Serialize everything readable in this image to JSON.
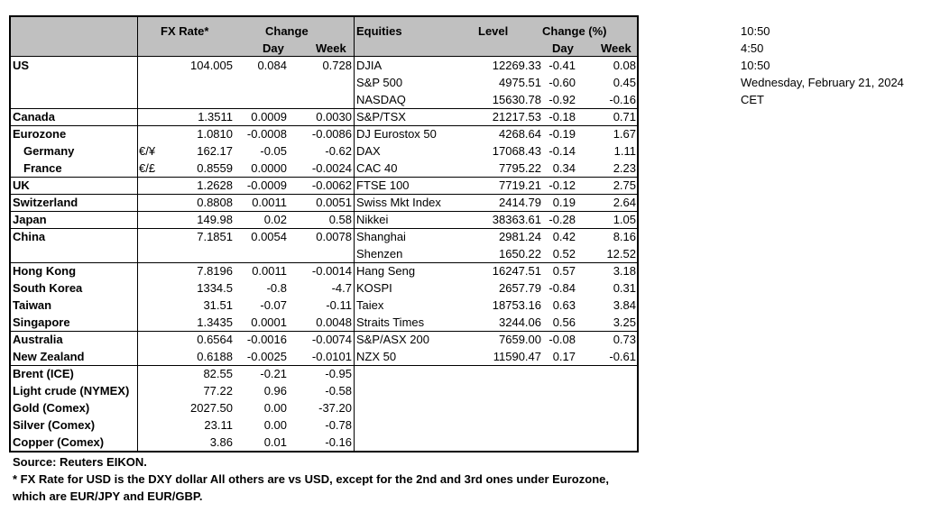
{
  "headers": {
    "fx_rate": "FX Rate*",
    "change": "Change",
    "day": "Day",
    "week": "Week",
    "equities": "Equities",
    "level": "Level",
    "change_pct": "Change (%)",
    "eq_day": "Day",
    "eq_week": "Week"
  },
  "rows": [
    {
      "country": "US",
      "bold": true,
      "indent": false,
      "pair": "",
      "fx": "104.005",
      "chg_day": "0.084",
      "chg_week": "0.728",
      "index": "DJIA",
      "level": "12269.33",
      "eq_day": "-0.41",
      "eq_week": "0.08"
    },
    {
      "country": "",
      "bold": false,
      "indent": false,
      "pair": "",
      "fx": "",
      "chg_day": "",
      "chg_week": "",
      "index": "S&P 500",
      "level": "4975.51",
      "eq_day": "-0.60",
      "eq_week": "0.45"
    },
    {
      "country": "",
      "bold": false,
      "indent": false,
      "pair": "",
      "fx": "",
      "chg_day": "",
      "chg_week": "",
      "index": "NASDAQ",
      "level": "15630.78",
      "eq_day": "-0.92",
      "eq_week": "-0.16"
    },
    {
      "country": "Canada",
      "bold": true,
      "indent": false,
      "pair": "",
      "fx": "1.3511",
      "chg_day": "0.0009",
      "chg_week": "0.0030",
      "index": "S&P/TSX",
      "level": "21217.53",
      "eq_day": "-0.18",
      "eq_week": "0.71"
    },
    {
      "country": "Eurozone",
      "bold": true,
      "indent": false,
      "pair": "",
      "fx": "1.0810",
      "chg_day": "-0.0008",
      "chg_week": "-0.0086",
      "index": "DJ Eurostox 50",
      "level": "4268.64",
      "eq_day": "-0.19",
      "eq_week": "1.67"
    },
    {
      "country": "Germany",
      "bold": true,
      "indent": true,
      "pair": "€/¥",
      "fx": "162.17",
      "chg_day": "-0.05",
      "chg_week": "-0.62",
      "index": "DAX",
      "level": "17068.43",
      "eq_day": "-0.14",
      "eq_week": "1.11"
    },
    {
      "country": "France",
      "bold": true,
      "indent": true,
      "pair": "€/£",
      "fx": "0.8559",
      "chg_day": "0.0000",
      "chg_week": "-0.0024",
      "index": "CAC 40",
      "level": "7795.22",
      "eq_day": "0.34",
      "eq_week": "2.23"
    },
    {
      "country": "UK",
      "bold": true,
      "indent": false,
      "pair": "",
      "fx": "1.2628",
      "chg_day": "-0.0009",
      "chg_week": "-0.0062",
      "index": "FTSE 100",
      "level": "7719.21",
      "eq_day": "-0.12",
      "eq_week": "2.75"
    },
    {
      "country": "Switzerland",
      "bold": true,
      "indent": false,
      "pair": "",
      "fx": "0.8808",
      "chg_day": "0.0011",
      "chg_week": "0.0051",
      "index": "Swiss Mkt Index",
      "level": "2414.79",
      "eq_day": "0.19",
      "eq_week": "2.64"
    },
    {
      "country": "Japan",
      "bold": true,
      "indent": false,
      "pair": "",
      "fx": "149.98",
      "chg_day": "0.02",
      "chg_week": "0.58",
      "index": "Nikkei",
      "level": "38363.61",
      "eq_day": "-0.28",
      "eq_week": "1.05"
    },
    {
      "country": "China",
      "bold": true,
      "indent": false,
      "pair": "",
      "fx": "7.1851",
      "chg_day": "0.0054",
      "chg_week": "0.0078",
      "index": "Shanghai",
      "level": "2981.24",
      "eq_day": "0.42",
      "eq_week": "8.16"
    },
    {
      "country": "",
      "bold": false,
      "indent": false,
      "pair": "",
      "fx": "",
      "chg_day": "",
      "chg_week": "",
      "index": "Shenzen",
      "level": "1650.22",
      "eq_day": "0.52",
      "eq_week": "12.52"
    },
    {
      "country": "Hong Kong",
      "bold": true,
      "indent": false,
      "pair": "",
      "fx": "7.8196",
      "chg_day": "0.0011",
      "chg_week": "-0.0014",
      "index": "Hang Seng",
      "level": "16247.51",
      "eq_day": "0.57",
      "eq_week": "3.18"
    },
    {
      "country": "South Korea",
      "bold": true,
      "indent": false,
      "pair": "",
      "fx": "1334.5",
      "chg_day": "-0.8",
      "chg_week": "-4.7",
      "index": "KOSPI",
      "level": "2657.79",
      "eq_day": "-0.84",
      "eq_week": "0.31"
    },
    {
      "country": "Taiwan",
      "bold": true,
      "indent": false,
      "pair": "",
      "fx": "31.51",
      "chg_day": "-0.07",
      "chg_week": "-0.11",
      "index": "Taiex",
      "level": "18753.16",
      "eq_day": "0.63",
      "eq_week": "3.84"
    },
    {
      "country": "Singapore",
      "bold": true,
      "indent": false,
      "pair": "",
      "fx": "1.3435",
      "chg_day": "0.0001",
      "chg_week": "0.0048",
      "index": "Straits Times",
      "level": "3244.06",
      "eq_day": "0.56",
      "eq_week": "3.25"
    },
    {
      "country": "Australia",
      "bold": true,
      "indent": false,
      "pair": "",
      "fx": "0.6564",
      "chg_day": "-0.0016",
      "chg_week": "-0.0074",
      "index": "S&P/ASX  200",
      "level": "7659.00",
      "eq_day": "-0.08",
      "eq_week": "0.73"
    },
    {
      "country": "New Zealand",
      "bold": true,
      "indent": false,
      "pair": "",
      "fx": "0.6188",
      "chg_day": "-0.0025",
      "chg_week": "-0.0101",
      "index": "NZX 50",
      "level": "11590.47",
      "eq_day": "0.17",
      "eq_week": "-0.61"
    },
    {
      "country": "Brent (ICE)",
      "bold": true,
      "indent": false,
      "pair": "",
      "fx": "82.55",
      "chg_day": "-0.21",
      "chg_week": "-0.95",
      "index": "",
      "level": "",
      "eq_day": "",
      "eq_week": ""
    },
    {
      "country": "Light crude (NYMEX)",
      "bold": true,
      "indent": false,
      "pair": "",
      "fx": "77.22",
      "chg_day": "0.96",
      "chg_week": "-0.58",
      "index": "",
      "level": "",
      "eq_day": "",
      "eq_week": ""
    },
    {
      "country": "Gold (Comex)",
      "bold": true,
      "indent": false,
      "pair": "",
      "fx": "2027.50",
      "chg_day": "0.00",
      "chg_week": "-37.20",
      "index": "",
      "level": "",
      "eq_day": "",
      "eq_week": ""
    },
    {
      "country": "Silver (Comex)",
      "bold": true,
      "indent": false,
      "pair": "",
      "fx": "23.11",
      "chg_day": "0.00",
      "chg_week": "-0.78",
      "index": "",
      "level": "",
      "eq_day": "",
      "eq_week": ""
    },
    {
      "country": "Copper (Comex)",
      "bold": true,
      "indent": false,
      "pair": "",
      "fx": "3.86",
      "chg_day": "0.01",
      "chg_week": "-0.16",
      "index": "",
      "level": "",
      "eq_day": "",
      "eq_week": ""
    }
  ],
  "side": {
    "time1": "10:50",
    "time2": "4:50",
    "time3": "10:50",
    "date": "Wednesday, February 21, 2024",
    "tz": "CET"
  },
  "notes": {
    "source": "Source:  Reuters EIKON.",
    "footnote1": "* FX Rate for USD is the DXY dollar  All others are vs USD, except for the 2nd and 3rd ones under Eurozone,",
    "footnote2": " which are EUR/JPY and EUR/GBP."
  },
  "colors": {
    "header_bg": "#c0c0c0",
    "border": "#000000"
  }
}
